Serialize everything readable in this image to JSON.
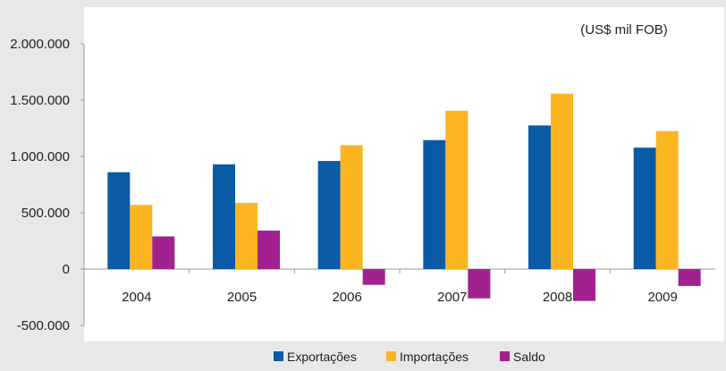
{
  "chart_data": {
    "type": "bar",
    "unit_label": "(US$ mil FOB)",
    "categories": [
      "2004",
      "2005",
      "2006",
      "2007",
      "2008",
      "2009"
    ],
    "series": [
      {
        "name": "Exportações",
        "color": "#0a5aa6",
        "values": [
          860000,
          930000,
          960000,
          1145000,
          1275000,
          1078000
        ]
      },
      {
        "name": "Importações",
        "color": "#fbb521",
        "values": [
          570000,
          588000,
          1100000,
          1405000,
          1558000,
          1225000
        ]
      },
      {
        "name": "Saldo",
        "color": "#a1228e",
        "values": [
          290000,
          342000,
          -140000,
          -260000,
          -283000,
          -150000
        ]
      }
    ],
    "ylim": [
      -500000,
      2000000
    ],
    "yticks": [
      {
        "value": 2000000,
        "label": "2.000.000"
      },
      {
        "value": 1500000,
        "label": "1.500.000"
      },
      {
        "value": 1000000,
        "label": "1.000.000"
      },
      {
        "value": 500000,
        "label": "500.000"
      },
      {
        "value": 0,
        "label": "0"
      },
      {
        "value": -500000,
        "label": "-500.000"
      }
    ],
    "legend_position": "bottom",
    "grid": false
  }
}
